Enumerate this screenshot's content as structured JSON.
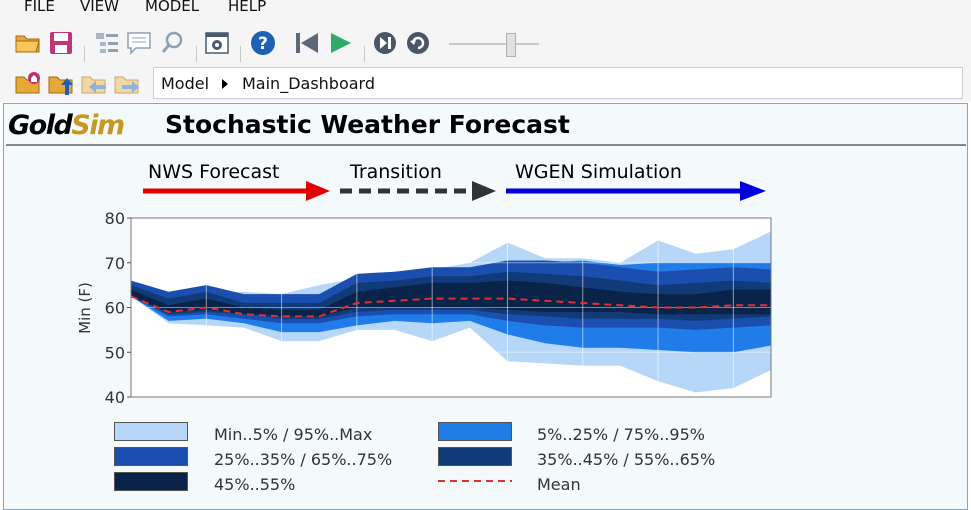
{
  "menu": [
    "FILE",
    "VIEW",
    "MODEL",
    "HELP"
  ],
  "toolbar": {
    "icons": [
      "open-folder-icon",
      "save-icon",
      "browser-icon",
      "notes-icon",
      "search-icon",
      "options-icon",
      "help-icon",
      "reset-icon",
      "run-icon",
      "step-icon",
      "pause-icon",
      "slider"
    ],
    "nav_icons": [
      "go-home-icon",
      "folder-up-icon",
      "back-icon",
      "forward-icon"
    ]
  },
  "breadcrumb": {
    "root": "Model",
    "current": "Main_Dashboard"
  },
  "dashboard": {
    "logo_text": "GoldSim",
    "title": "Stochastic Weather Forecast",
    "phases": [
      {
        "label": "NWS Forecast",
        "color": "#e00000",
        "style": "solid"
      },
      {
        "label": "Transition",
        "color": "#333333",
        "style": "dashed"
      },
      {
        "label": "WGEN Simulation",
        "color": "#0000dd",
        "style": "solid"
      }
    ]
  },
  "chart_data": {
    "type": "area",
    "ylabel": "Min (F)",
    "ylim": [
      40,
      80
    ],
    "yticks": [
      40,
      50,
      60,
      70,
      80
    ],
    "grid": true,
    "x": [
      0,
      1,
      2,
      3,
      4,
      5,
      6,
      7,
      8,
      9,
      10,
      11,
      12,
      13,
      14,
      15,
      16,
      17
    ],
    "bands": [
      {
        "name": "Min..5% / 95%..Max",
        "color": "#b7d7f8",
        "low": [
          62.5,
          56.5,
          56,
          55.5,
          52.5,
          52.5,
          55,
          55,
          52.5,
          55.5,
          48,
          47.5,
          47,
          47,
          43.5,
          41,
          42,
          46
        ],
        "high": [
          62.5,
          61,
          63,
          63.5,
          63,
          65,
          66.5,
          68,
          68.5,
          70,
          74.5,
          71,
          71,
          70,
          75,
          72,
          73,
          77
        ]
      },
      {
        "name": "5%..25% / 75%..95%",
        "color": "#1f7ce8",
        "low": [
          62.5,
          57,
          57.5,
          56.5,
          54.5,
          54.5,
          56,
          57,
          56.5,
          57,
          54,
          52,
          51,
          51,
          50.5,
          50,
          50,
          51.5
        ],
        "high": [
          62.5,
          61,
          63,
          62.5,
          62,
          63,
          64.5,
          66,
          67,
          68,
          70,
          70,
          70.5,
          69.5,
          70,
          70,
          70,
          70
        ]
      },
      {
        "name": "25%..35% / 65%..75%",
        "color": "#1a4fb0",
        "low": [
          62.5,
          58,
          58.5,
          57.5,
          56.5,
          56.5,
          58,
          58.5,
          58.5,
          58.5,
          57,
          56,
          55.5,
          55.5,
          55.5,
          55,
          55.5,
          56
        ]
      },
      {
        "name": "35%..45% / 55%..65%",
        "color": "#113a78",
        "low": [
          62.5,
          58.5,
          59,
          58.5,
          57.5,
          57.5,
          59,
          59.5,
          59.5,
          59.5,
          58.5,
          58,
          57.5,
          57.5,
          57.5,
          57,
          57.5,
          58
        ]
      },
      {
        "name": "45%..55%",
        "color": "#0a2349",
        "low": [
          62.5,
          59,
          59.5,
          58.5,
          58,
          58,
          60,
          60,
          60,
          60,
          59.5,
          59,
          59,
          59,
          58.5,
          58.5,
          58.5,
          58.5
        ]
      }
    ],
    "mean": {
      "name": "Mean",
      "color": "#e03030",
      "values": [
        62.5,
        59,
        60,
        58.5,
        58,
        58,
        61,
        61.5,
        62,
        62,
        62,
        61.5,
        61,
        60.5,
        60,
        60,
        60.5,
        60.5
      ]
    },
    "legend": [
      {
        "label": "Min..5% / 95%..Max",
        "color": "#b7d7f8"
      },
      {
        "label": "5%..25% / 75%..95%",
        "color": "#1f7ce8"
      },
      {
        "label": "25%..35% / 65%..75%",
        "color": "#1a4fb0"
      },
      {
        "label": "35%..45% / 55%..65%",
        "color": "#113a78"
      },
      {
        "label": "45%..55%",
        "color": "#0a2349"
      },
      {
        "label": "Mean",
        "color": "#e03030"
      }
    ]
  }
}
